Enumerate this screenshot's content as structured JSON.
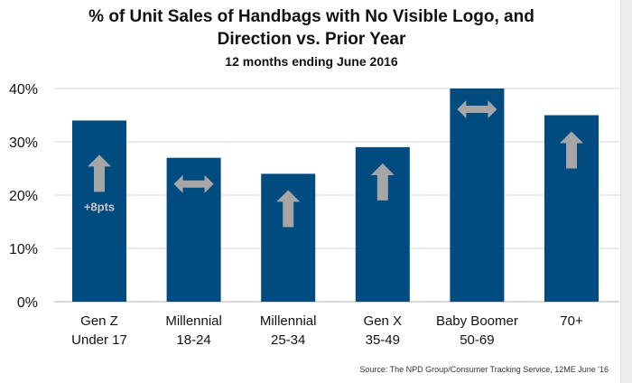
{
  "chart_data": {
    "type": "bar",
    "title": "% of Unit Sales of Handbags with No Visible Logo, and Direction vs. Prior Year",
    "title_lines": [
      "% of Unit Sales of Handbags with No Visible Logo, and",
      "Direction vs. Prior Year"
    ],
    "subtitle": "12 months ending June 2016",
    "categories": [
      [
        "Gen Z",
        "Under 17"
      ],
      [
        "Millennial",
        "18-24"
      ],
      [
        "Millennial",
        "25-34"
      ],
      [
        "Gen X",
        "35-49"
      ],
      [
        "Baby Boomer",
        "50-69"
      ],
      [
        "70+",
        ""
      ]
    ],
    "values": [
      34,
      27,
      24,
      29,
      40,
      35
    ],
    "direction": [
      "up",
      "flat",
      "up",
      "up",
      "flat",
      "up"
    ],
    "annotations": [
      "+8pts",
      "",
      "",
      "",
      "",
      ""
    ],
    "yticks": [
      "0%",
      "10%",
      "20%",
      "30%",
      "40%"
    ],
    "ylim": [
      0,
      40
    ],
    "grid": true,
    "colors": {
      "bar": "#004b7f",
      "arrow": "#a6a6a6",
      "grid": "#e3e3e3"
    },
    "source": "Source: The NPD Group/Consumer Tracking Service, 12ME June '16"
  }
}
